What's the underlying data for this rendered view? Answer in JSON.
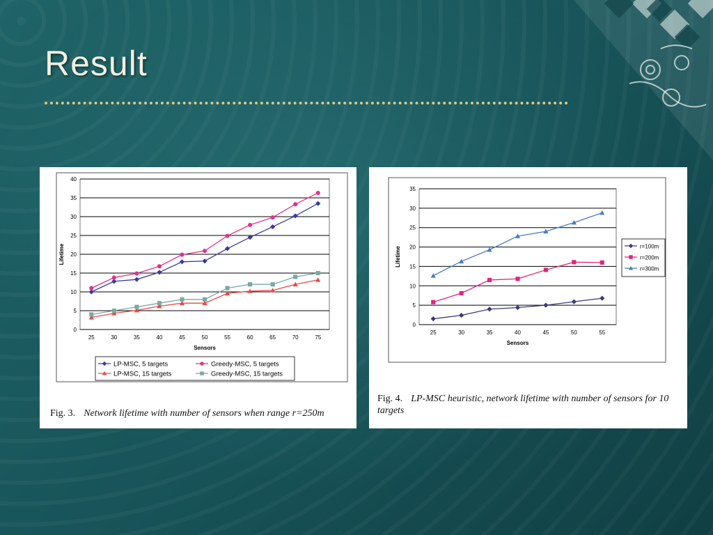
{
  "slide": {
    "title": "Result"
  },
  "colors": {
    "lp5": "#3a3a9c",
    "greedy5": "#e0338f",
    "lp15": "#e84848",
    "greedy15": "#7aa8a4",
    "r100": "#3a3a7a",
    "r200": "#e0247e",
    "r300": "#4a7bbf"
  },
  "figures": [
    {
      "label": "Fig. 3.",
      "caption": "Network lifetime with number of sensors when range r=250m"
    },
    {
      "label": "Fig. 4.",
      "caption": "LP-MSC heuristic, network lifetime with number of sensors for 10 targets"
    }
  ],
  "chart_data": [
    {
      "type": "line",
      "xlabel": "Sensors",
      "ylabel": "Lifetime",
      "categories": [
        "25",
        "30",
        "35",
        "40",
        "45",
        "50",
        "55",
        "60",
        "65",
        "70",
        "75"
      ],
      "ylim": [
        0,
        40
      ],
      "yticks": [
        "0",
        "5",
        "10",
        "15",
        "20",
        "25",
        "30",
        "35",
        "40"
      ],
      "grid": "horizontal",
      "legend_position": "bottom",
      "series": [
        {
          "name": "LP-MSC, 5 targets",
          "marker": "diamond",
          "color": "#3a3a9c",
          "values": [
            10,
            12.8,
            13.3,
            15.2,
            18,
            18.2,
            21.5,
            24.5,
            27.3,
            30.2,
            33.5
          ]
        },
        {
          "name": "Greedy-MSC, 5 targets",
          "marker": "circle",
          "color": "#e0338f",
          "values": [
            11,
            13.8,
            14.9,
            16.8,
            19.9,
            20.9,
            24.9,
            27.8,
            29.8,
            33.3,
            36.3
          ]
        },
        {
          "name": "LP-MSC, 15 targets",
          "marker": "triangle",
          "color": "#e84848",
          "values": [
            3.2,
            4.3,
            5.1,
            6.2,
            7,
            7,
            9.6,
            10.2,
            10.4,
            12,
            13.2
          ]
        },
        {
          "name": "Greedy-MSC, 15 targets",
          "marker": "square",
          "color": "#7aa8a4",
          "values": [
            4,
            5,
            6,
            7,
            8,
            8,
            11,
            12,
            12,
            14,
            15
          ]
        }
      ]
    },
    {
      "type": "line",
      "xlabel": "Sensors",
      "ylabel": "Lifetime",
      "categories": [
        "25",
        "30",
        "35",
        "40",
        "45",
        "50",
        "55"
      ],
      "ylim": [
        0,
        35
      ],
      "yticks": [
        "0",
        "5",
        "10",
        "15",
        "20",
        "25",
        "30",
        "35"
      ],
      "grid": "horizontal",
      "legend_position": "right",
      "series": [
        {
          "name": "r=100m",
          "marker": "diamond",
          "color": "#3a3a7a",
          "values": [
            1.5,
            2.4,
            4,
            4.4,
            5,
            5.9,
            6.8
          ]
        },
        {
          "name": "r=200m",
          "marker": "square",
          "color": "#e0247e",
          "values": [
            5.8,
            8.1,
            11.5,
            11.8,
            14.1,
            16.1,
            16
          ]
        },
        {
          "name": "r=300m",
          "marker": "triangle",
          "color": "#4a7bbf",
          "values": [
            12.6,
            16.3,
            19.3,
            22.8,
            24,
            26.3,
            28.8
          ]
        }
      ]
    }
  ]
}
